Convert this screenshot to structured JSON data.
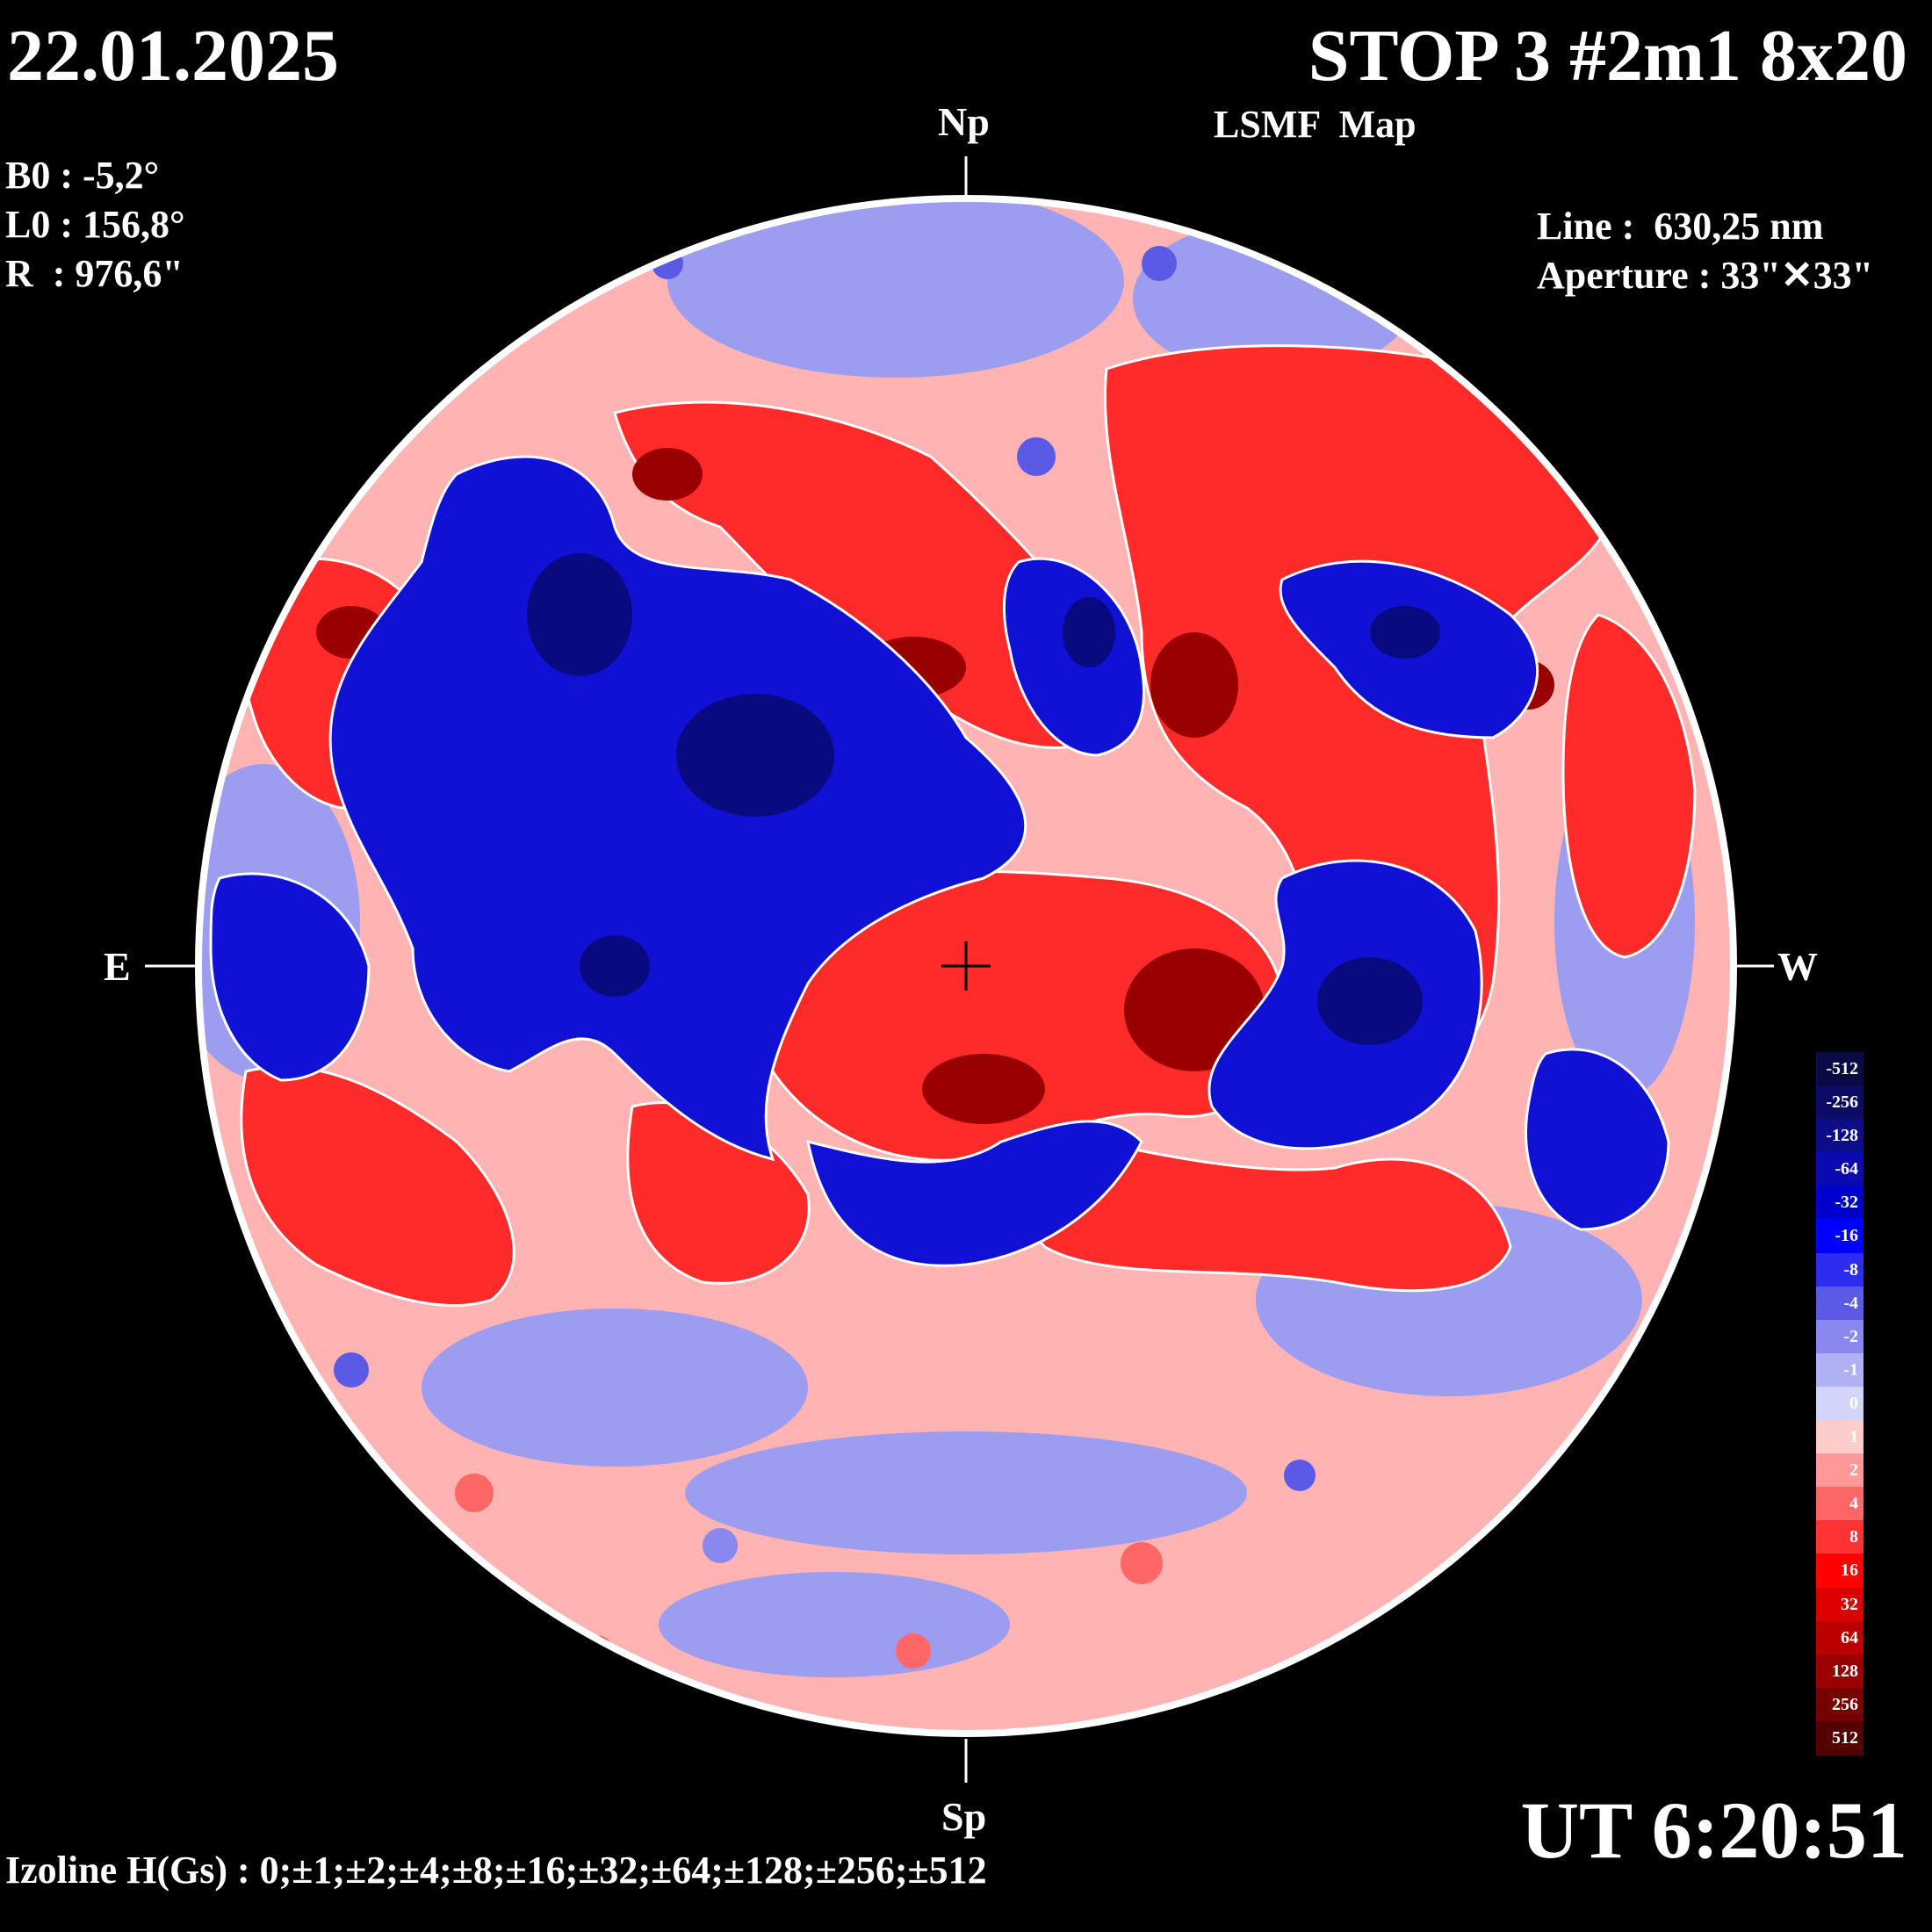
{
  "header": {
    "date": "22.01.2025",
    "title": "STOP 3 #2m1 8x20",
    "subtitle": "LSMF  Map"
  },
  "params": {
    "b0": "B0 : -5,2°",
    "l0": "L0 : 156,8°",
    "radius": "R  : 976,6\""
  },
  "instrument": {
    "line": "Line :  630,25 nm",
    "aperture": "Aperture : 33\"✕33\""
  },
  "directions": {
    "north": "Np",
    "south": "Sp",
    "east": "E",
    "west": "W"
  },
  "time": "UT 6:20:51",
  "izoline": "Izoline H(Gs) : 0;±1;±2;±4;±8;±16;±32;±64;±128;±256;±512",
  "colors": {
    "positive": "#ff0000",
    "negative": "#0000ff",
    "zero": "#ffffff",
    "background": "#000000"
  },
  "legend": {
    "levels": [
      {
        "label": "-512",
        "color": "#0a0a45"
      },
      {
        "label": "-256",
        "color": "#0c0c66"
      },
      {
        "label": "-128",
        "color": "#0d0d8a"
      },
      {
        "label": "-64",
        "color": "#0a0ab0"
      },
      {
        "label": "-32",
        "color": "#0000cc"
      },
      {
        "label": "-16",
        "color": "#0000ff"
      },
      {
        "label": "-8",
        "color": "#2d2df0"
      },
      {
        "label": "-4",
        "color": "#5a5ae6"
      },
      {
        "label": "-2",
        "color": "#8888ee"
      },
      {
        "label": "-1",
        "color": "#b0b0f4"
      },
      {
        "label": "0",
        "color": "#d4d4fa"
      },
      {
        "label": "1",
        "color": "#ffcccc"
      },
      {
        "label": "2",
        "color": "#ff9999"
      },
      {
        "label": "4",
        "color": "#ff6666"
      },
      {
        "label": "8",
        "color": "#ff3333"
      },
      {
        "label": "16",
        "color": "#ff0000"
      },
      {
        "label": "32",
        "color": "#dd0000"
      },
      {
        "label": "64",
        "color": "#bb0000"
      },
      {
        "label": "128",
        "color": "#990000"
      },
      {
        "label": "256",
        "color": "#770000"
      },
      {
        "label": "512",
        "color": "#550000"
      }
    ]
  }
}
